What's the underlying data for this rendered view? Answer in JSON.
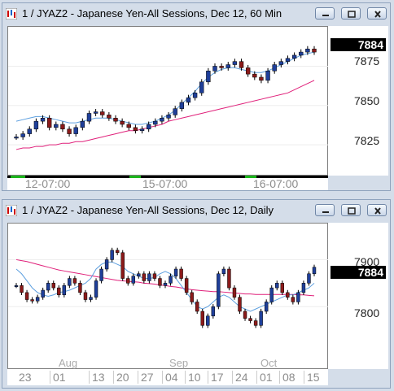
{
  "top": {
    "title": "1 / JYAZ2 - Japanese Yen-All Sessions, Dec 12, 60 Min",
    "last_price": "7884",
    "y_ticks": [
      "7875",
      "7850",
      "7825"
    ],
    "x_labels": [
      "12-07:00",
      "15-07:00",
      "16-07:00"
    ]
  },
  "bottom": {
    "title": "1 / JYAZ2 - Japanese Yen-All Sessions, Dec 12, Daily",
    "last_price": "7884",
    "y_ticks": [
      "7900",
      "7800"
    ],
    "month_labels": [
      "Aug",
      "Sep",
      "Oct"
    ],
    "x_labels": [
      "23",
      "01",
      "13",
      "20",
      "27",
      "04",
      "10",
      "17",
      "24",
      "01",
      "08",
      "15"
    ]
  },
  "colors": {
    "up": "#1f3f9a",
    "down": "#8b1a1a",
    "ma_fast": "#5ea0e0",
    "ma_mid": "#777777",
    "ma_slow": "#e0207a"
  },
  "icons": [
    "chart-icon",
    "minimize-icon",
    "restore-icon",
    "close-icon"
  ],
  "chart_data": [
    {
      "type": "candlestick",
      "title": "1 / JYAZ2 - Japanese Yen-All Sessions, Dec 12, 60 Min",
      "ylim": [
        7808,
        7898
      ],
      "close": [
        7830,
        7832,
        7835,
        7840,
        7842,
        7836,
        7838,
        7835,
        7832,
        7836,
        7840,
        7845,
        7846,
        7844,
        7842,
        7840,
        7838,
        7836,
        7834,
        7835,
        7838,
        7840,
        7842,
        7844,
        7848,
        7852,
        7855,
        7858,
        7865,
        7872,
        7875,
        7874,
        7876,
        7878,
        7874,
        7870,
        7868,
        7866,
        7872,
        7876,
        7878,
        7880,
        7882,
        7884,
        7886,
        7884
      ],
      "ma_fast": [
        7840,
        7841,
        7842,
        7843,
        7843,
        7842,
        7841,
        7840,
        7839,
        7839,
        7840,
        7841,
        7842,
        7842,
        7842,
        7841,
        7840,
        7839,
        7838,
        7838,
        7839,
        7840,
        7842,
        7844,
        7847,
        7851,
        7855,
        7859,
        7864,
        7868,
        7871,
        7873,
        7874,
        7874,
        7873,
        7872,
        7871,
        7871,
        7872,
        7874,
        7876,
        7878,
        7880,
        7882,
        7883,
        7884
      ],
      "ma_slow": [
        7822,
        7823,
        7823,
        7824,
        7824,
        7825,
        7825,
        7826,
        7826,
        7827,
        7827,
        7828,
        7829,
        7830,
        7831,
        7832,
        7833,
        7834,
        7834,
        7835,
        7836,
        7837,
        7838,
        7840,
        7841,
        7842,
        7843,
        7844,
        7845,
        7846,
        7847,
        7848,
        7849,
        7850,
        7851,
        7852,
        7853,
        7854,
        7855,
        7856,
        7857,
        7858,
        7860,
        7862,
        7864,
        7866
      ]
    },
    {
      "type": "candlestick",
      "title": "1 / JYAZ2 - Japanese Yen-All Sessions, Dec 12, Daily",
      "ylim": [
        7700,
        7970
      ],
      "close": [
        7845,
        7830,
        7815,
        7812,
        7820,
        7835,
        7850,
        7840,
        7825,
        7845,
        7860,
        7850,
        7830,
        7815,
        7820,
        7855,
        7880,
        7900,
        7920,
        7915,
        7860,
        7850,
        7865,
        7870,
        7855,
        7870,
        7860,
        7845,
        7850,
        7865,
        7880,
        7860,
        7830,
        7810,
        7790,
        7760,
        7780,
        7800,
        7870,
        7880,
        7840,
        7820,
        7790,
        7775,
        7770,
        7760,
        7790,
        7810,
        7840,
        7850,
        7830,
        7820,
        7810,
        7830,
        7850,
        7870,
        7884
      ],
      "ma_fast": [
        7880,
        7870,
        7855,
        7840,
        7830,
        7825,
        7822,
        7825,
        7830,
        7832,
        7835,
        7840,
        7845,
        7850,
        7860,
        7880,
        7890,
        7895,
        7895,
        7890,
        7885,
        7875,
        7870,
        7865,
        7860,
        7860,
        7862,
        7870,
        7875,
        7870,
        7860,
        7845,
        7830,
        7815,
        7800,
        7795,
        7800,
        7810,
        7820,
        7825,
        7820,
        7810,
        7800,
        7795,
        7790,
        7795,
        7800,
        7805,
        7810,
        7815,
        7820,
        7825,
        7825,
        7830,
        7835,
        7840,
        7850
      ],
      "ma_slow": [
        7900,
        7898,
        7896,
        7893,
        7890,
        7887,
        7884,
        7881,
        7878,
        7876,
        7874,
        7872,
        7870,
        7868,
        7866,
        7864,
        7862,
        7860,
        7858,
        7856,
        7855,
        7854,
        7853,
        7852,
        7850,
        7849,
        7848,
        7846,
        7845,
        7843,
        7842,
        7840,
        7838,
        7836,
        7835,
        7834,
        7833,
        7832,
        7832,
        7831,
        7830,
        7829,
        7828,
        7827,
        7827,
        7826,
        7826,
        7826,
        7826,
        7826,
        7826,
        7826,
        7826,
        7825,
        7825,
        7824,
        7823
      ]
    }
  ]
}
